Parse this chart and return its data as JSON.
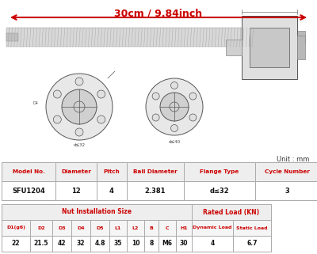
{
  "title": "30cm / 9.84inch",
  "title_color": "#cc0000",
  "unit_text": "Unit : mm",
  "bg_color": "#ffffff",
  "table1_headers": [
    "Model No.",
    "Diameter",
    "Pitch",
    "Ball Diameter",
    "Flange Type",
    "Cycle Number"
  ],
  "table1_data": [
    [
      "SFU1204",
      "12",
      "4",
      "2.381",
      "d≤32",
      "3"
    ]
  ],
  "table2_header1": "Nut Installation Size",
  "table2_header2": "Rated Load (KN)",
  "table2_subheaders": [
    "D1(g6)",
    "D2",
    "D3",
    "D4",
    "D5",
    "L1",
    "L2",
    "B",
    "C",
    "H1",
    "Dynamic Load",
    "Static Load"
  ],
  "table2_data": [
    [
      "22",
      "21.5",
      "42",
      "32",
      "4.8",
      "35",
      "10",
      "8",
      "M6",
      "30",
      "4",
      "6.7"
    ]
  ],
  "header_text_color": "#cc0000",
  "table_border_color": "#aaaaaa",
  "arrow_color": "#cc0000"
}
